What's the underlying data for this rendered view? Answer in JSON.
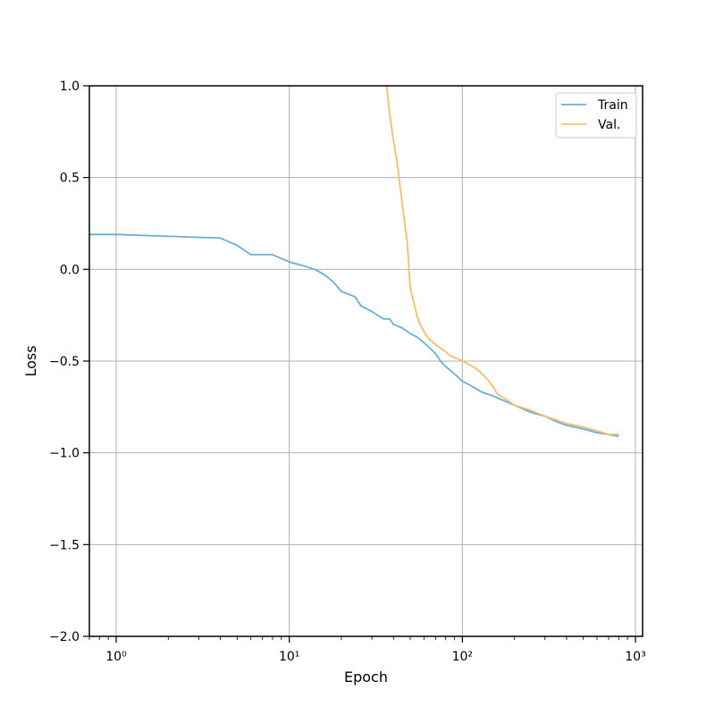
{
  "chart_data": {
    "type": "line",
    "title": "",
    "xlabel": "Epoch",
    "ylabel": "Loss",
    "xscale": "log",
    "xlim": [
      0.7,
      1100
    ],
    "ylim": [
      -2.0,
      1.0
    ],
    "grid": true,
    "legend": {
      "position": "top-right",
      "entries": [
        "Train",
        "Val."
      ]
    },
    "x_ticks": [
      {
        "value": 1,
        "label": "10⁰"
      },
      {
        "value": 10,
        "label": "10¹"
      },
      {
        "value": 100,
        "label": "10²"
      },
      {
        "value": 1000,
        "label": "10³"
      }
    ],
    "y_ticks": [
      {
        "value": 1.0,
        "label": "1.0"
      },
      {
        "value": 0.5,
        "label": "0.5"
      },
      {
        "value": 0.0,
        "label": "0.0"
      },
      {
        "value": -0.5,
        "label": "−0.5"
      },
      {
        "value": -1.0,
        "label": "−1.0"
      },
      {
        "value": -1.5,
        "label": "−1.5"
      },
      {
        "value": -2.0,
        "label": "−2.0"
      }
    ],
    "series": [
      {
        "name": "Train",
        "color": "#6baed6",
        "x": [
          0.7,
          1,
          2,
          4,
          5,
          6,
          8,
          10,
          12,
          14,
          16,
          18,
          20,
          24,
          26,
          30,
          35,
          38,
          40,
          45,
          50,
          55,
          60,
          65,
          70,
          75,
          80,
          85,
          90,
          95,
          100,
          110,
          120,
          130,
          150,
          200,
          250,
          300,
          350,
          400,
          500,
          600,
          700,
          800
        ],
        "y": [
          0.19,
          0.19,
          0.18,
          0.17,
          0.13,
          0.08,
          0.08,
          0.04,
          0.02,
          0.0,
          -0.03,
          -0.07,
          -0.12,
          -0.15,
          -0.2,
          -0.23,
          -0.27,
          -0.27,
          -0.3,
          -0.32,
          -0.35,
          -0.37,
          -0.4,
          -0.43,
          -0.46,
          -0.5,
          -0.53,
          -0.55,
          -0.57,
          -0.59,
          -0.61,
          -0.63,
          -0.65,
          -0.67,
          -0.69,
          -0.74,
          -0.78,
          -0.8,
          -0.83,
          -0.85,
          -0.87,
          -0.89,
          -0.9,
          -0.91
        ]
      },
      {
        "name": "Val.",
        "color": "#f3be6b",
        "x": [
          36.5,
          38,
          40,
          42,
          45,
          48,
          50,
          53,
          55,
          57,
          60,
          63,
          66,
          70,
          75,
          80,
          85,
          90,
          95,
          100,
          110,
          120,
          130,
          140,
          150,
          160,
          180,
          200,
          250,
          300,
          400,
          500,
          600,
          700,
          800
        ],
        "y": [
          1.0,
          0.85,
          0.7,
          0.58,
          0.35,
          0.15,
          -0.1,
          -0.2,
          -0.26,
          -0.3,
          -0.34,
          -0.37,
          -0.39,
          -0.41,
          -0.43,
          -0.45,
          -0.47,
          -0.48,
          -0.49,
          -0.5,
          -0.52,
          -0.54,
          -0.57,
          -0.6,
          -0.64,
          -0.68,
          -0.71,
          -0.74,
          -0.77,
          -0.8,
          -0.84,
          -0.86,
          -0.88,
          -0.9,
          -0.9
        ]
      }
    ]
  }
}
